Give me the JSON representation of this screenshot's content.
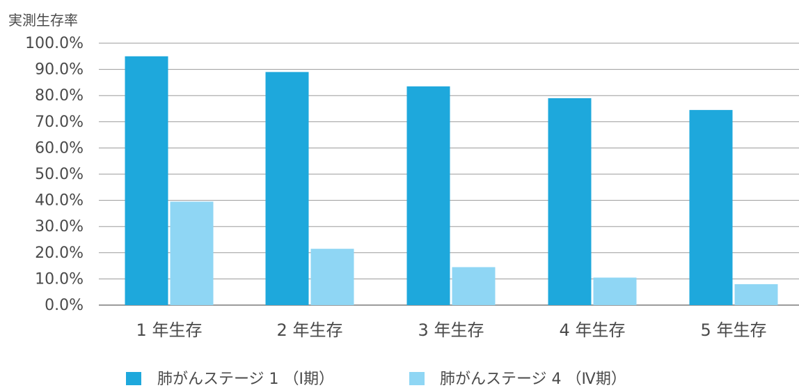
{
  "chart_data": {
    "type": "bar",
    "ylabel": "実測生存率",
    "ylim": [
      0,
      100
    ],
    "yticks": [
      "0.0%",
      "10.0%",
      "20.0%",
      "30.0%",
      "40.0%",
      "50.0%",
      "60.0%",
      "70.0%",
      "80.0%",
      "90.0%",
      "100.0%"
    ],
    "categories": [
      "1 年生存",
      "2 年生存",
      "3 年生存",
      "4 年生存",
      "5 年生存"
    ],
    "series": [
      {
        "name": "肺がんステージ 1 （Ⅰ期）",
        "color": "#1ea8dc",
        "values": [
          95.0,
          89.0,
          83.5,
          79.0,
          74.5
        ]
      },
      {
        "name": "肺がんステージ 4 （Ⅳ期）",
        "color": "#8fd6f4",
        "values": [
          39.5,
          21.5,
          14.5,
          10.5,
          8.0
        ]
      }
    ],
    "grid": true,
    "legend_position": "bottom"
  }
}
